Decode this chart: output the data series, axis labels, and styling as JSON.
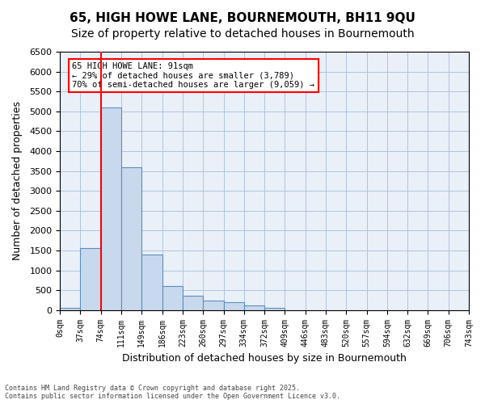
{
  "title_line1": "65, HIGH HOWE LANE, BOURNEMOUTH, BH11 9QU",
  "title_line2": "Size of property relative to detached houses in Bournemouth",
  "xlabel": "Distribution of detached houses by size in Bournemouth",
  "ylabel": "Number of detached properties",
  "bar_color": "#c9d9ed",
  "bar_edge_color": "#5b8fba",
  "grid_color": "#b0c4de",
  "background_color": "#eaf0f8",
  "bin_labels": [
    "0sqm",
    "37sqm",
    "74sqm",
    "111sqm",
    "149sqm",
    "186sqm",
    "223sqm",
    "260sqm",
    "297sqm",
    "334sqm",
    "372sqm",
    "409sqm",
    "446sqm",
    "483sqm",
    "520sqm",
    "557sqm",
    "594sqm",
    "632sqm",
    "669sqm",
    "706sqm",
    "743sqm"
  ],
  "bar_heights": [
    50,
    1550,
    5100,
    3600,
    1400,
    600,
    350,
    230,
    190,
    110,
    50,
    0,
    0,
    0,
    0,
    0,
    0,
    0,
    0,
    0
  ],
  "red_line_x": 2,
  "annotation_line1": "65 HIGH HOWE LANE: 91sqm",
  "annotation_line2": "← 29% of detached houses are smaller (3,789)",
  "annotation_line3": "70% of semi-detached houses are larger (9,059) →",
  "ylim": [
    0,
    6500
  ],
  "yticks": [
    0,
    500,
    1000,
    1500,
    2000,
    2500,
    3000,
    3500,
    4000,
    4500,
    5000,
    5500,
    6000,
    6500
  ],
  "footnote1": "Contains HM Land Registry data © Crown copyright and database right 2025.",
  "footnote2": "Contains public sector information licensed under the Open Government Licence v3.0.",
  "title_fontsize": 11,
  "subtitle_fontsize": 10,
  "annotation_box_color": "white",
  "annotation_box_edge": "red"
}
